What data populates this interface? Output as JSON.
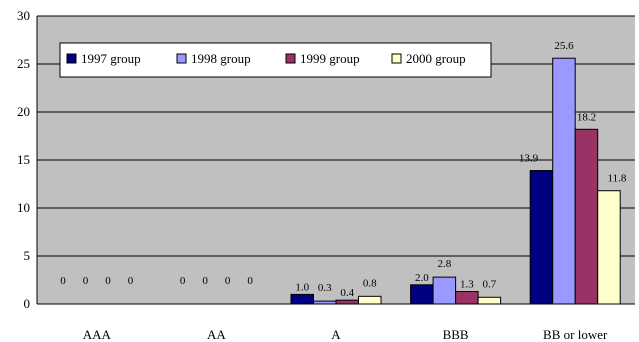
{
  "chart_data": {
    "type": "bar",
    "title": "",
    "xlabel": "",
    "ylabel": "",
    "categories": [
      "AAA",
      "AA",
      "A",
      "BBB",
      "BB or lower"
    ],
    "series": [
      {
        "name": "1997 group",
        "values": [
          0,
          0,
          1.0,
          2.0,
          13.9
        ],
        "labels": [
          "0",
          "0",
          "1.0",
          "2.0",
          "13.9"
        ],
        "color": "#000080"
      },
      {
        "name": "1998 group",
        "values": [
          0,
          0,
          0.3,
          2.8,
          25.6
        ],
        "labels": [
          "0",
          "0",
          "0.3",
          "2.8",
          "25.6"
        ],
        "color": "#9999ff"
      },
      {
        "name": "1999 group",
        "values": [
          0,
          0,
          0.4,
          1.3,
          18.2
        ],
        "labels": [
          "0",
          "0",
          "0.4",
          "1.3",
          "18.2"
        ],
        "color": "#993366"
      },
      {
        "name": "2000 group",
        "values": [
          0,
          0,
          0.8,
          0.7,
          11.8
        ],
        "labels": [
          "0",
          "0",
          "0.8",
          "0.7",
          "11.8"
        ],
        "color": "#ffffcc"
      }
    ],
    "ylim": [
      0,
      30
    ],
    "yticks": [
      0,
      5,
      10,
      15,
      20,
      25,
      30
    ],
    "ytick_labels": [
      "0",
      "5",
      "10",
      "15",
      "20",
      "25",
      "30"
    ],
    "grid": true,
    "plot_background": "#c0c0c0",
    "legend_position": "top-left"
  }
}
